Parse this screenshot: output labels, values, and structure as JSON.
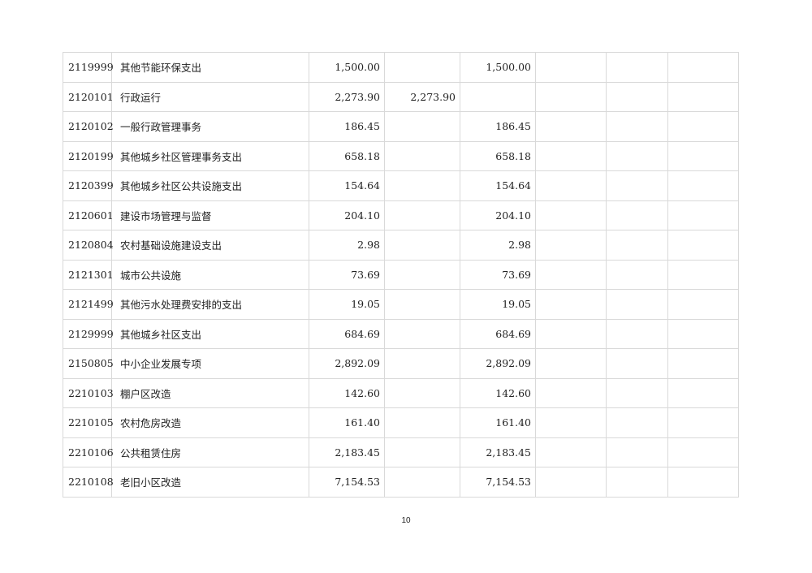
{
  "table": {
    "rows": [
      {
        "code": "2119999",
        "name": "其他节能环保支出",
        "total": "1,500.00",
        "basic": "",
        "project": "1,500.00"
      },
      {
        "code": "2120101",
        "name": "行政运行",
        "total": "2,273.90",
        "basic": "2,273.90",
        "project": ""
      },
      {
        "code": "2120102",
        "name": "一般行政管理事务",
        "total": "186.45",
        "basic": "",
        "project": "186.45"
      },
      {
        "code": "2120199",
        "name": "其他城乡社区管理事务支出",
        "total": "658.18",
        "basic": "",
        "project": "658.18"
      },
      {
        "code": "2120399",
        "name": "其他城乡社区公共设施支出",
        "total": "154.64",
        "basic": "",
        "project": "154.64"
      },
      {
        "code": "2120601",
        "name": "建设市场管理与监督",
        "total": "204.10",
        "basic": "",
        "project": "204.10"
      },
      {
        "code": "2120804",
        "name": "农村基础设施建设支出",
        "total": "2.98",
        "basic": "",
        "project": "2.98"
      },
      {
        "code": "2121301",
        "name": "城市公共设施",
        "total": "73.69",
        "basic": "",
        "project": "73.69"
      },
      {
        "code": "2121499",
        "name": "其他污水处理费安排的支出",
        "total": "19.05",
        "basic": "",
        "project": "19.05"
      },
      {
        "code": "2129999",
        "name": "其他城乡社区支出",
        "total": "684.69",
        "basic": "",
        "project": "684.69"
      },
      {
        "code": "2150805",
        "name": "中小企业发展专项",
        "total": "2,892.09",
        "basic": "",
        "project": "2,892.09"
      },
      {
        "code": "2210103",
        "name": "棚户区改造",
        "total": "142.60",
        "basic": "",
        "project": "142.60"
      },
      {
        "code": "2210105",
        "name": "农村危房改造",
        "total": "161.40",
        "basic": "",
        "project": "161.40"
      },
      {
        "code": "2210106",
        "name": "公共租赁住房",
        "total": "2,183.45",
        "basic": "",
        "project": "2,183.45"
      },
      {
        "code": "2210108",
        "name": "老旧小区改造",
        "total": "7,154.53",
        "basic": "",
        "project": "7,154.53"
      }
    ]
  },
  "page_number": "10"
}
